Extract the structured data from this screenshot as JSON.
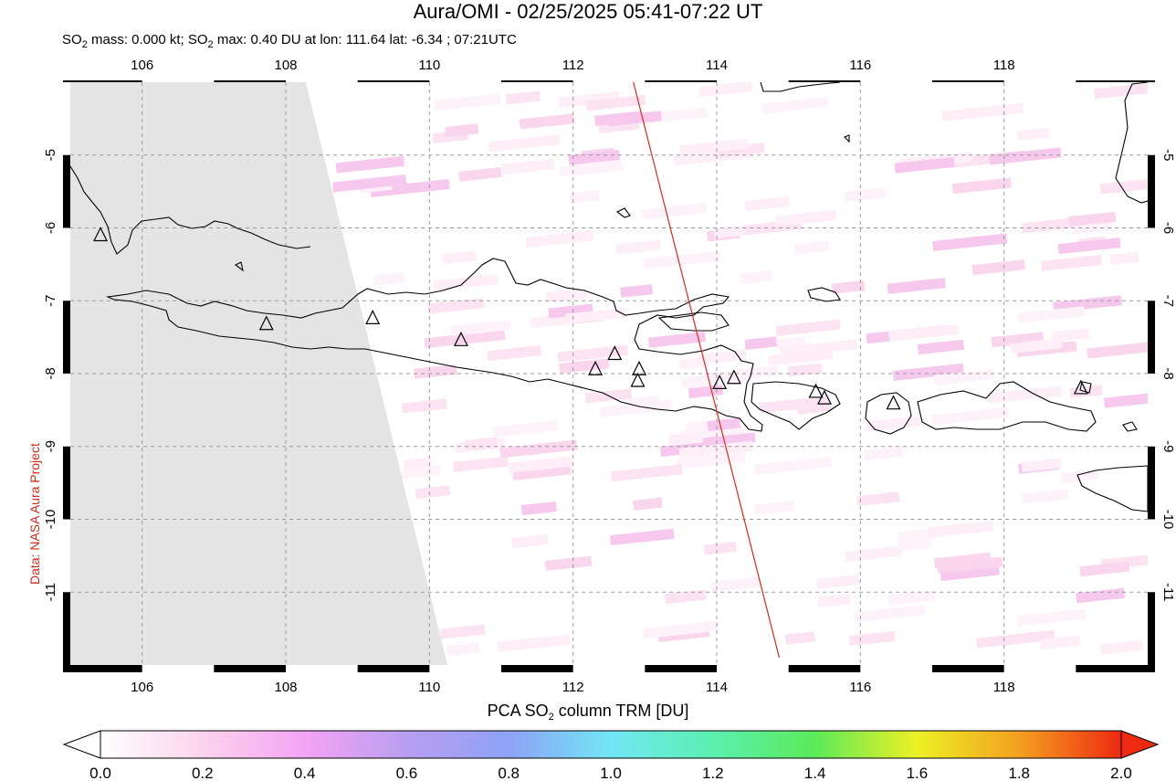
{
  "title": "Aura/OMI - 02/25/2025 05:41-07:22 UT",
  "subtitle": {
    "prefix": "SO",
    "sub": "2",
    "text1": " mass: 0.000 kt; SO",
    "sub2": "2",
    "text2": " max: 0.40 DU at lon: 111.64 lat: -6.34 ; 07:21UTC"
  },
  "side_credit": "Data: NASA Aura Project",
  "map": {
    "lon_range": [
      105,
      120
    ],
    "lat_range": [
      -12,
      -4
    ],
    "lon_ticks": [
      "106",
      "108",
      "110",
      "112",
      "114",
      "116",
      "118"
    ],
    "lat_ticks": [
      "-5",
      "-6",
      "-7",
      "-8",
      "-9",
      "-10",
      "-11"
    ],
    "no_data_color": "#e4e4e4",
    "grid": "dashed"
  },
  "colorbar": {
    "title_pre": "PCA SO",
    "title_sub": "2",
    "title_post": " column TRM [DU]",
    "ticks": [
      "0.0",
      "0.2",
      "0.4",
      "0.6",
      "0.8",
      "1.0",
      "1.2",
      "1.4",
      "1.6",
      "1.8",
      "2.0"
    ],
    "range": [
      0,
      2.0
    ]
  },
  "volcanoes": [
    {
      "lon": 105.42,
      "lat": -6.1
    },
    {
      "lon": 107.73,
      "lat": -7.32
    },
    {
      "lon": 109.21,
      "lat": -7.24
    },
    {
      "lon": 110.44,
      "lat": -7.54
    },
    {
      "lon": 112.31,
      "lat": -7.94
    },
    {
      "lon": 112.58,
      "lat": -7.73
    },
    {
      "lon": 112.92,
      "lat": -7.94
    },
    {
      "lon": 112.9,
      "lat": -8.1
    },
    {
      "lon": 114.04,
      "lat": -8.13
    },
    {
      "lon": 114.24,
      "lat": -8.06
    },
    {
      "lon": 115.38,
      "lat": -8.25
    },
    {
      "lon": 115.5,
      "lat": -8.34
    },
    {
      "lon": 116.46,
      "lat": -8.41
    },
    {
      "lon": 119.07,
      "lat": -8.2
    }
  ],
  "orbit_track": [
    {
      "lon": 112.84,
      "lat": -4.0
    },
    {
      "lon": 114.87,
      "lat": -11.9
    }
  ]
}
